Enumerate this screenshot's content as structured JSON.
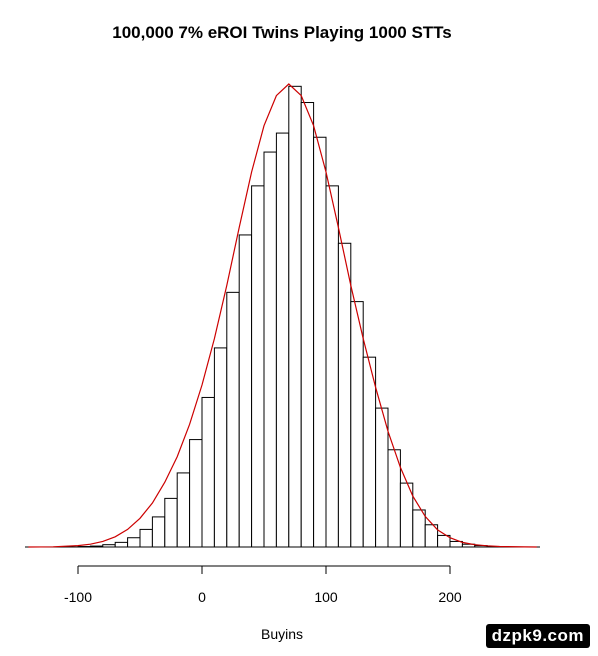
{
  "chart_data": {
    "type": "bar",
    "title": "100,000 7% eROI Twins Playing 1000 STTs",
    "xlabel": "Buyins",
    "ylabel": "",
    "xlim": [
      -100,
      250
    ],
    "xticks": [
      -100,
      0,
      100,
      200
    ],
    "bin_width": 10,
    "bin_starts": [
      -100,
      -90,
      -80,
      -70,
      -60,
      -50,
      -40,
      -30,
      -20,
      -10,
      0,
      10,
      20,
      30,
      40,
      50,
      60,
      70,
      80,
      90,
      100,
      110,
      120,
      130,
      140,
      150,
      160,
      170,
      180,
      190,
      200,
      210,
      220,
      230,
      240
    ],
    "values": [
      0.1,
      0.2,
      0.5,
      1.0,
      2.0,
      3.8,
      6.5,
      10.5,
      16.0,
      23.2,
      32.3,
      43.0,
      55.0,
      67.4,
      78.0,
      85.3,
      89.4,
      99.5,
      96.0,
      88.5,
      78.0,
      65.6,
      53.0,
      41.0,
      30.0,
      21.0,
      13.8,
      8.0,
      4.8,
      2.5,
      1.2,
      0.6,
      0.3,
      0.1,
      0.0
    ],
    "density_curve": {
      "color": "#cc0000",
      "x": [
        -140,
        -120,
        -100,
        -90,
        -80,
        -70,
        -60,
        -50,
        -40,
        -30,
        -20,
        -10,
        0,
        10,
        20,
        30,
        40,
        50,
        60,
        70,
        80,
        90,
        100,
        110,
        120,
        130,
        140,
        150,
        160,
        170,
        180,
        190,
        200,
        210,
        220,
        230,
        240,
        260,
        270
      ],
      "y": [
        0.0,
        0.05,
        0.3,
        0.6,
        1.2,
        2.2,
        3.8,
        6.2,
        9.5,
        14.0,
        19.5,
        26.5,
        35.0,
        45.0,
        56.5,
        69.0,
        81.0,
        91.0,
        97.5,
        100.0,
        97.5,
        91.0,
        81.0,
        69.0,
        56.5,
        45.0,
        34.5,
        25.0,
        17.2,
        11.0,
        6.6,
        3.7,
        2.0,
        1.0,
        0.5,
        0.25,
        0.1,
        0.02,
        0.0
      ]
    },
    "bar_fill": "#ffffff",
    "bar_stroke": "#000000",
    "grid": false,
    "legend": "none"
  },
  "watermark": "dzpk9.com"
}
